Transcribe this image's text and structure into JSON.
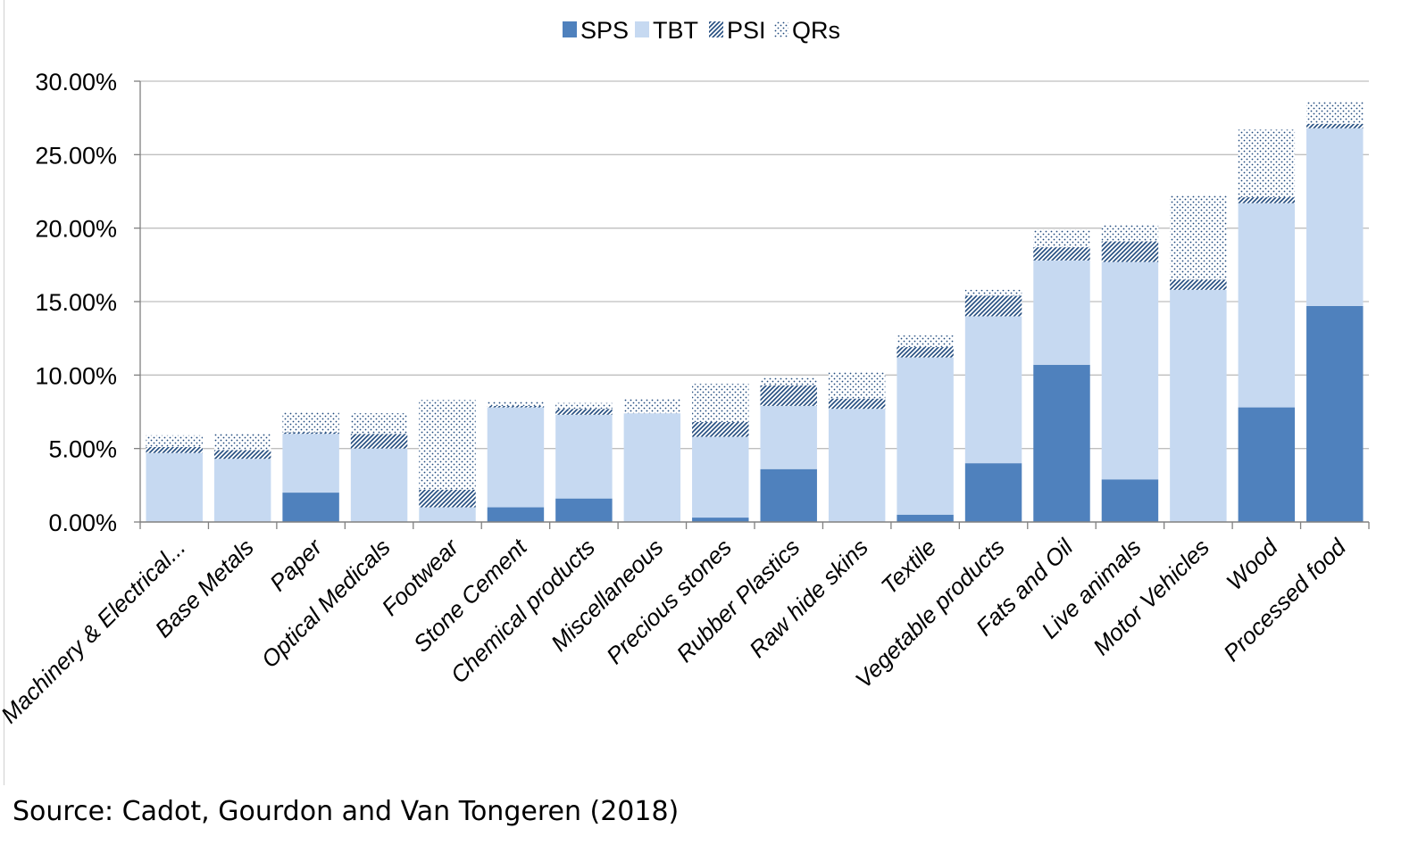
{
  "chart_data": {
    "type": "bar",
    "stacked": true,
    "categories": [
      "Machinery & Electrical...",
      "Base Metals",
      "Paper",
      "Optical Medicals",
      "Footwear",
      "Stone Cement",
      "Chemical products",
      "Miscellaneous",
      "Precious stones",
      "Rubber Plastics",
      "Raw hide skins",
      "Textile",
      "Vegetable products",
      "Fats and Oil",
      "Live animals",
      "Motor Vehicles",
      "Wood",
      "Processed food"
    ],
    "series": [
      {
        "name": "SPS",
        "color": "#4f81bd",
        "pattern": "solid",
        "values": [
          0.0,
          0.0,
          2.0,
          0.0,
          0.0,
          1.0,
          1.6,
          0.0,
          0.3,
          3.6,
          0.0,
          0.5,
          4.0,
          10.7,
          2.9,
          0.0,
          7.8,
          14.7
        ]
      },
      {
        "name": "TBT",
        "color": "#c6d9f1",
        "pattern": "solid",
        "values": [
          4.7,
          4.3,
          4.0,
          5.0,
          1.0,
          6.8,
          5.7,
          7.4,
          5.5,
          4.3,
          7.7,
          10.7,
          10.0,
          7.1,
          14.8,
          15.8,
          13.9,
          12.1
        ]
      },
      {
        "name": "PSI",
        "color": "#1f497d",
        "pattern": "diagonal",
        "values": [
          0.4,
          0.6,
          0.1,
          1.0,
          1.2,
          0.1,
          0.4,
          0.0,
          1.0,
          1.4,
          0.7,
          0.7,
          1.4,
          0.9,
          1.4,
          0.7,
          0.4,
          0.3
        ]
      },
      {
        "name": "QRs",
        "color": "#1f497d",
        "pattern": "dots",
        "values": [
          0.8,
          1.1,
          1.4,
          1.4,
          6.1,
          0.3,
          0.4,
          1.0,
          2.6,
          0.5,
          1.8,
          0.8,
          0.4,
          1.2,
          1.1,
          5.7,
          4.6,
          1.5
        ]
      }
    ],
    "y_ticks": [
      "0.00%",
      "5.00%",
      "10.00%",
      "15.00%",
      "20.00%",
      "25.00%",
      "30.00%"
    ],
    "ylim": [
      0,
      30
    ],
    "y_unit": "%",
    "grid": true,
    "legend_position": "top-center",
    "title": "",
    "xlabel": "",
    "ylabel": ""
  },
  "source_note": "Source: Cadot, Gourdon and Van Tongeren (2018)"
}
